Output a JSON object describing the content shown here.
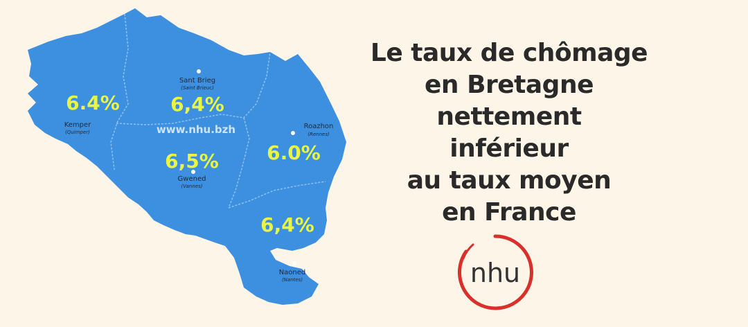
{
  "headline": {
    "lines": [
      "Le taux de chômage",
      "en Bretagne",
      "nettement",
      "inférieur",
      "au taux moyen",
      "en France"
    ]
  },
  "map": {
    "watermark": "www.nhu.bzh",
    "colors": {
      "land": "#3d8fe0",
      "border": "#8fc2f0",
      "rate_text": "#e8f542",
      "city_text": "#1d2a3a"
    },
    "regions": [
      {
        "id": "finistere",
        "rate": "6.4%",
        "city": "Kemper",
        "city_alt": "(Quimper)"
      },
      {
        "id": "cotes-darmor",
        "rate": "6,4%",
        "city": "Sant Brieg",
        "city_alt": "(Saint Brieuc)"
      },
      {
        "id": "morbihan",
        "rate": "6,5%",
        "city": "Gwened",
        "city_alt": "(Vannes)"
      },
      {
        "id": "ille-et-vilaine",
        "rate": "6.0%",
        "city": "Roazhon",
        "city_alt": "(Rennes)"
      },
      {
        "id": "loire-atlantique",
        "rate": "6,4%",
        "city": "Naoned",
        "city_alt": "(Nantes)"
      }
    ]
  },
  "logo": {
    "text": "nhu",
    "ring_color": "#d9302c",
    "text_color": "#333333"
  }
}
